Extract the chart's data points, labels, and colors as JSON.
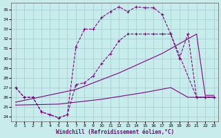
{
  "xlabel": "Windchill (Refroidissement éolien,°C)",
  "bg_color": "#c8ecec",
  "line_color": "#800080",
  "grid_color": "#b0d8d8",
  "xlim": [
    -0.5,
    23.5
  ],
  "ylim": [
    23.5,
    35.7
  ],
  "yticks": [
    24,
    25,
    26,
    27,
    28,
    29,
    30,
    31,
    32,
    33,
    34,
    35
  ],
  "xticks": [
    0,
    1,
    2,
    3,
    4,
    5,
    6,
    7,
    8,
    9,
    10,
    11,
    12,
    13,
    14,
    15,
    16,
    17,
    18,
    19,
    20,
    21,
    22,
    23
  ],
  "line_upper_x": [
    0,
    1,
    2,
    3,
    4,
    5,
    6,
    7,
    8,
    9,
    10,
    11,
    12,
    13,
    14,
    15,
    16,
    17,
    18,
    21,
    22,
    23
  ],
  "line_upper_y": [
    27.0,
    26.0,
    26.0,
    24.5,
    24.2,
    23.9,
    24.2,
    31.2,
    33.0,
    33.0,
    34.2,
    34.8,
    35.3,
    34.8,
    35.3,
    35.2,
    35.2,
    34.5,
    32.5,
    26.0,
    26.0,
    26.0
  ],
  "line_lower_x": [
    0,
    1,
    2,
    3,
    4,
    5,
    6,
    7,
    8,
    9,
    10,
    11,
    12,
    13,
    14,
    15,
    16,
    17,
    18,
    19,
    20,
    21,
    22,
    23
  ],
  "line_lower_y": [
    27.0,
    26.0,
    26.0,
    24.5,
    24.2,
    23.9,
    24.2,
    27.3,
    27.5,
    28.2,
    29.5,
    30.5,
    31.8,
    32.5,
    32.5,
    32.5,
    32.5,
    32.5,
    32.5,
    30.0,
    32.5,
    26.0,
    26.0,
    26.0
  ],
  "line_diag1_x": [
    0,
    7,
    12,
    17,
    18,
    21,
    22,
    23
  ],
  "line_diag1_y": [
    25.5,
    26.8,
    28.5,
    30.5,
    31.0,
    32.5,
    26.2,
    26.2
  ],
  "line_diag2_x": [
    0,
    5,
    10,
    15,
    18,
    20,
    21,
    22,
    23
  ],
  "line_diag2_y": [
    25.2,
    25.3,
    25.8,
    26.5,
    27.0,
    26.0,
    26.0,
    26.0,
    26.0
  ]
}
